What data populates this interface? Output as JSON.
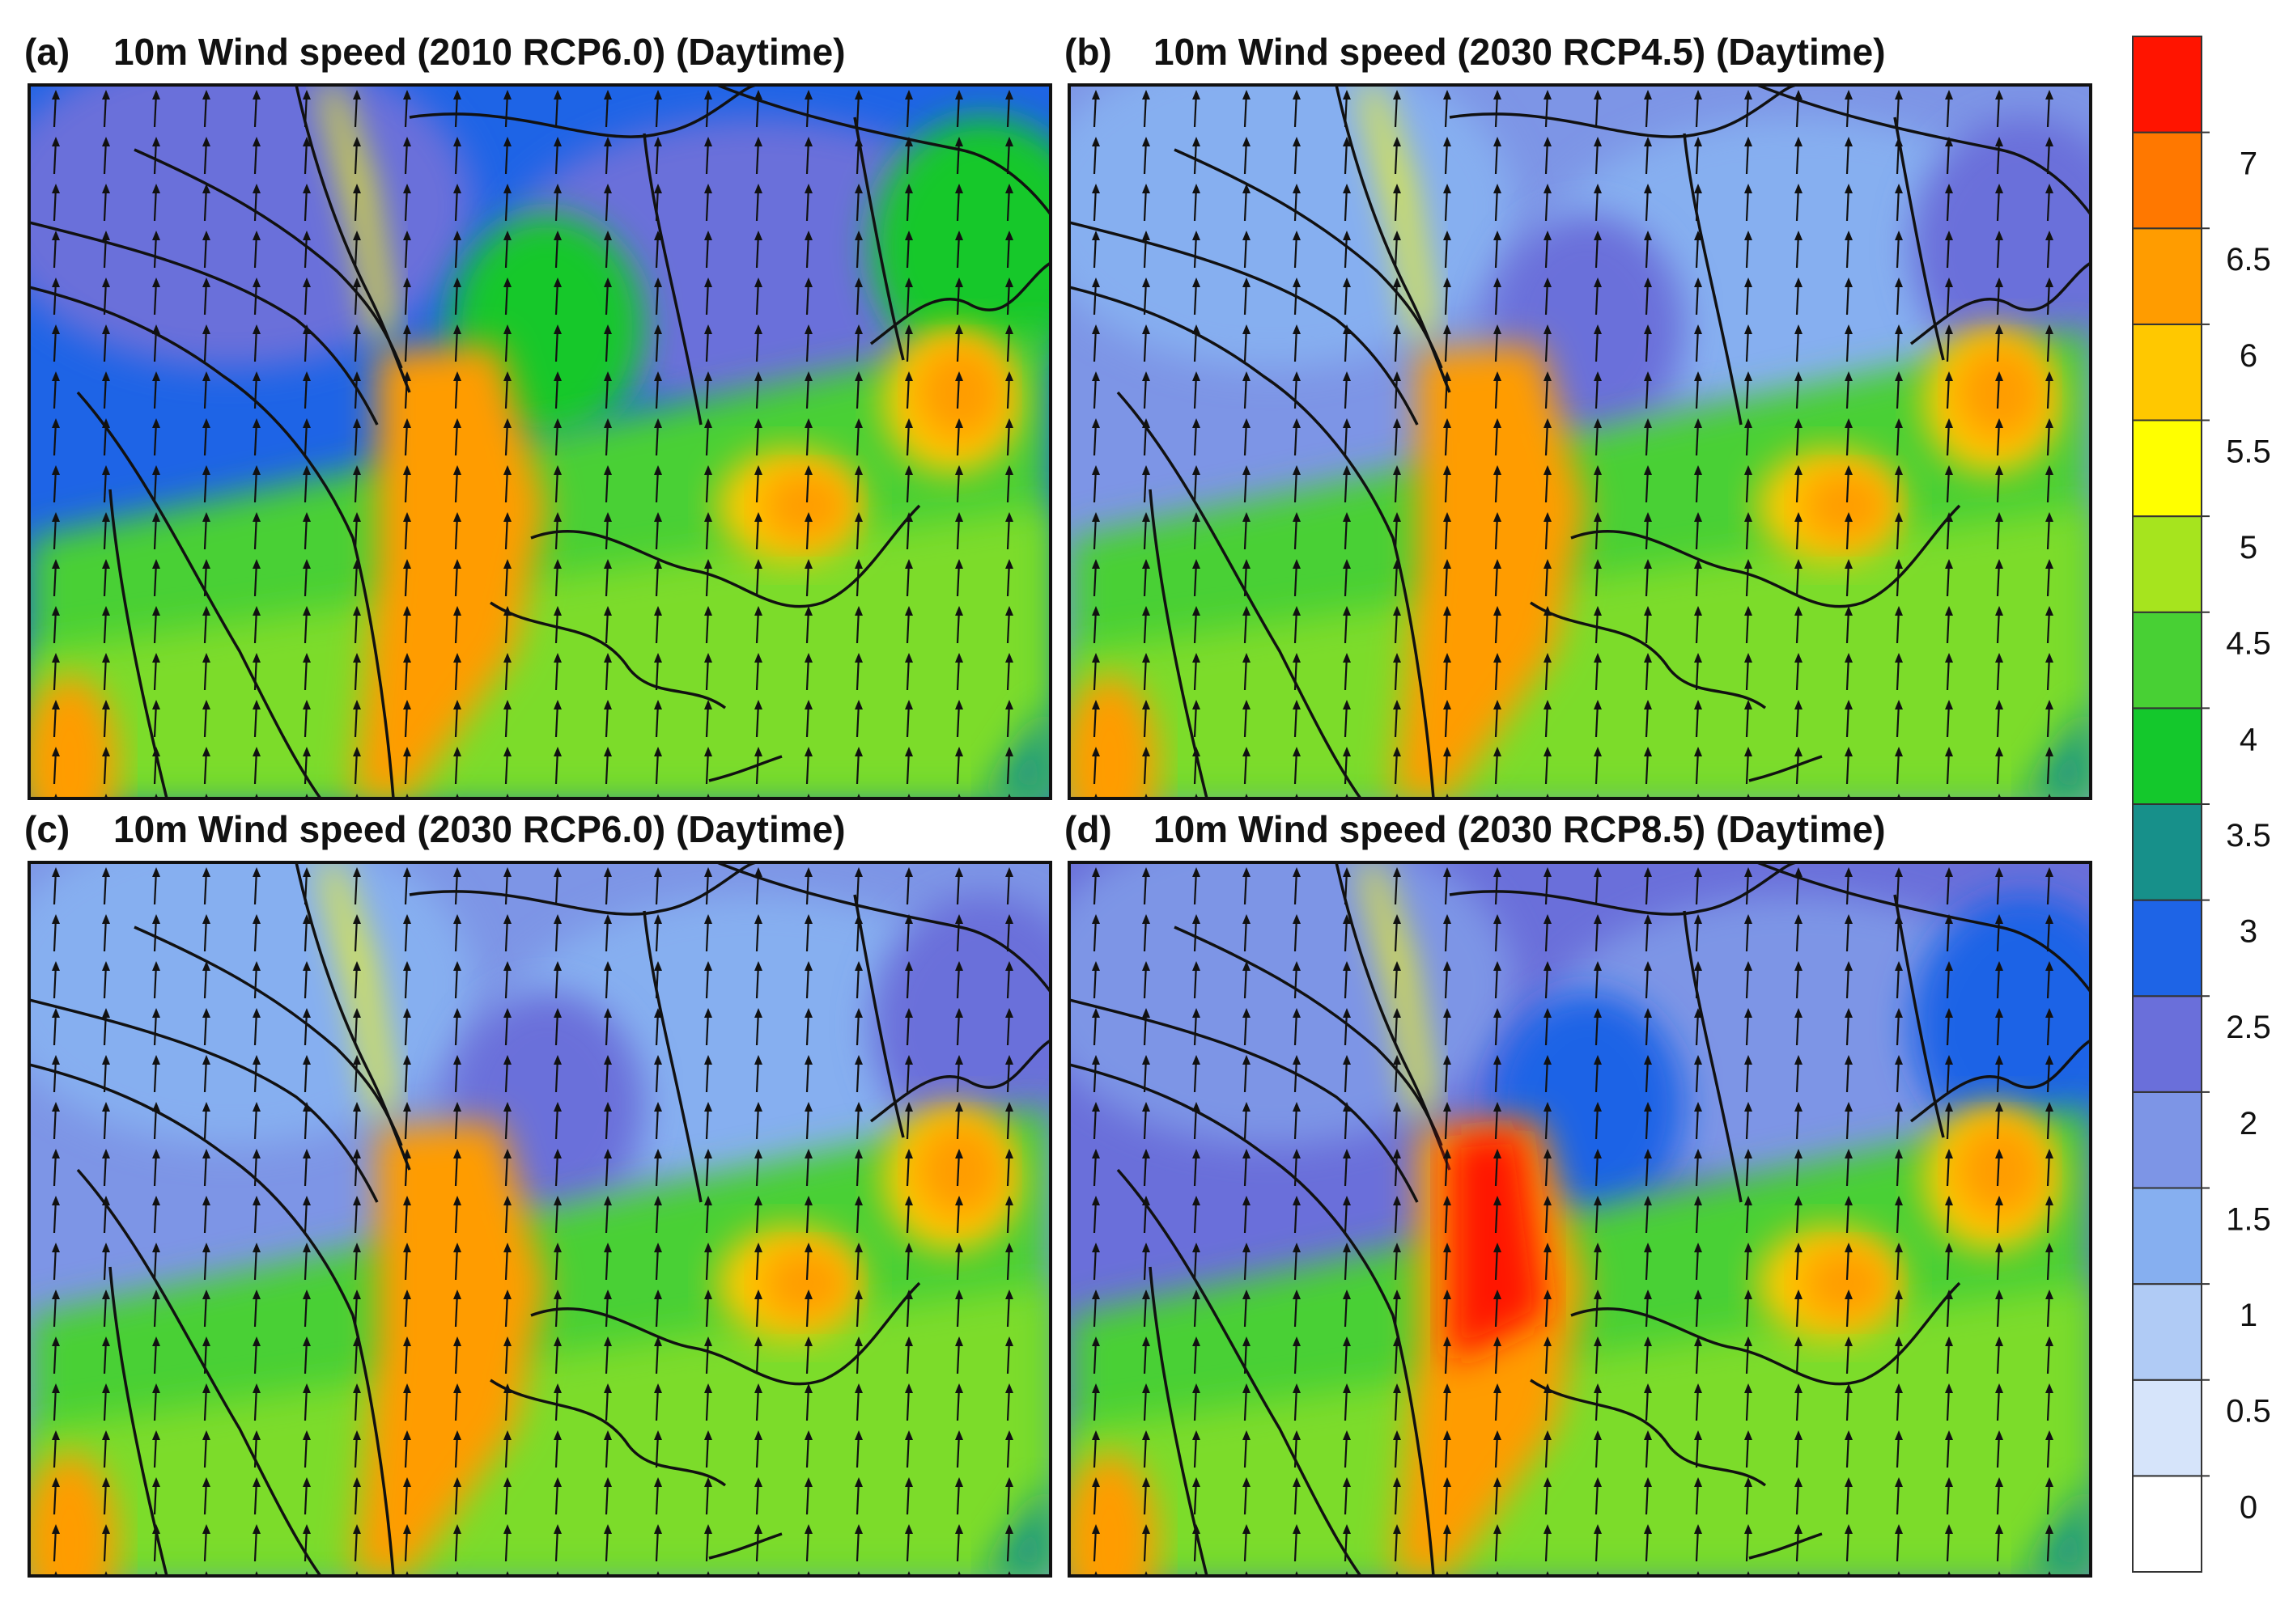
{
  "panels": [
    {
      "label": "(a)",
      "title": "10m Wind speed (2010 RCP6.0) (Daytime)"
    },
    {
      "label": "(b)",
      "title": "10m Wind speed (2030 RCP4.5) (Daytime)"
    },
    {
      "label": "(c)",
      "title": "10m Wind speed (2030 RCP6.0) (Daytime)"
    },
    {
      "label": "(d)",
      "title": "10m Wind speed (2030 RCP8.5) (Daytime)"
    }
  ],
  "colorbar": {
    "ticks": [
      0,
      0.5,
      1,
      1.5,
      2,
      2.5,
      3,
      3.5,
      4,
      4.5,
      5,
      5.5,
      6,
      6.5,
      7
    ],
    "colors": [
      "#ffffff",
      "#d6e4fa",
      "#b0cbf5",
      "#86aff0",
      "#7d95e6",
      "#6a6fda",
      "#1e64e6",
      "#17908a",
      "#14c82c",
      "#48d034",
      "#a6e41e",
      "#ffff00",
      "#ffc800",
      "#ff9c00",
      "#ff7800",
      "#ff1400"
    ]
  }
}
